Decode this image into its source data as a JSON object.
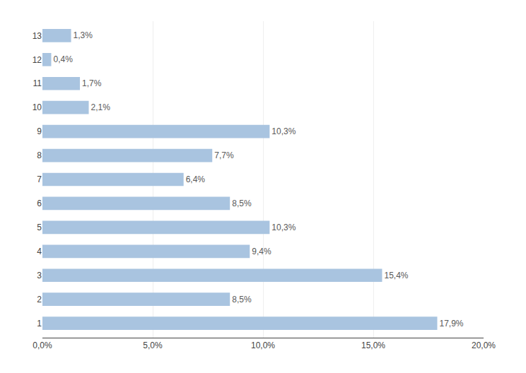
{
  "chart_data": {
    "type": "bar",
    "orientation": "horizontal",
    "categories": [
      1,
      2,
      3,
      4,
      5,
      6,
      7,
      8,
      9,
      10,
      11,
      12,
      13
    ],
    "values": [
      17.9,
      8.5,
      15.4,
      9.4,
      10.3,
      8.5,
      6.4,
      7.7,
      10.3,
      2.1,
      1.7,
      0.4,
      1.3
    ],
    "value_labels": [
      "17,9%",
      "8,5%",
      "15,4%",
      "9,4%",
      "10,3%",
      "8,5%",
      "6,4%",
      "7,7%",
      "10,3%",
      "2,1%",
      "1,7%",
      "0,4%",
      "1,3%"
    ],
    "data_labels": true,
    "color": "#a9c4e0",
    "xlim": [
      0,
      20
    ],
    "xticks": [
      {
        "value": 0,
        "label": "0,0%"
      },
      {
        "value": 5,
        "label": "5,0%"
      },
      {
        "value": 10,
        "label": "10,0%"
      },
      {
        "value": 15,
        "label": "15,0%"
      },
      {
        "value": 20,
        "label": "20,0%"
      }
    ],
    "grid": true
  }
}
